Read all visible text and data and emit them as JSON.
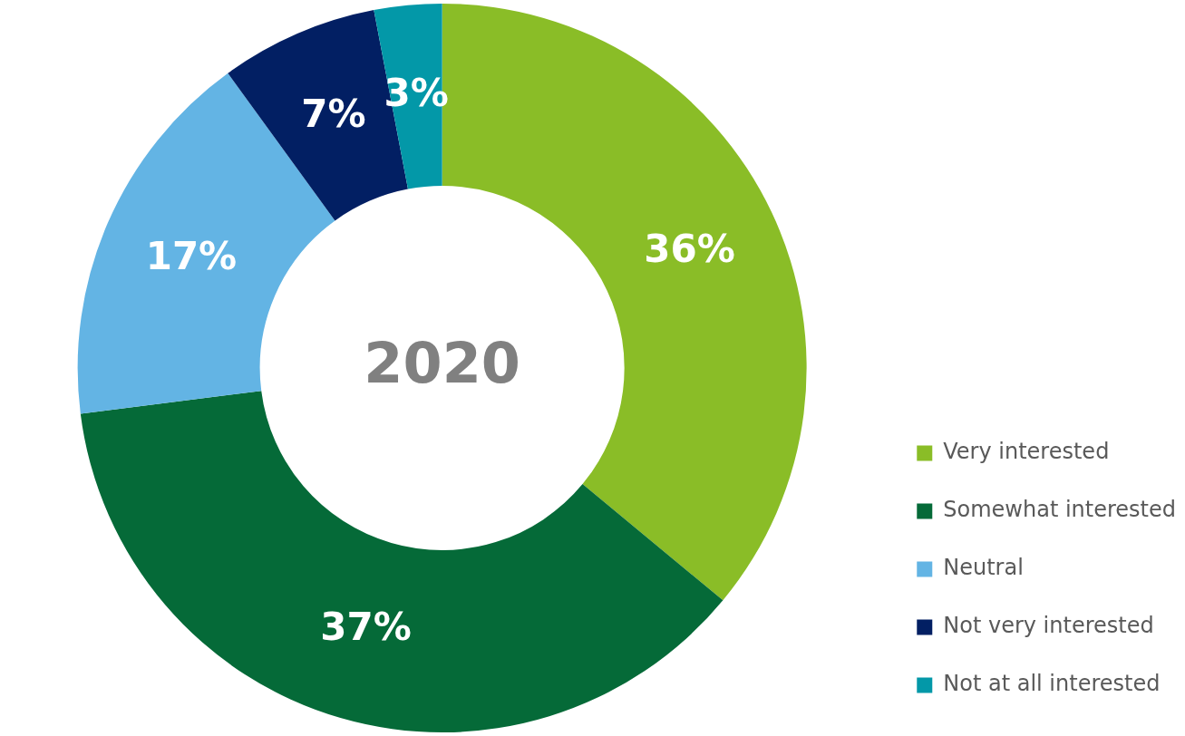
{
  "chart_data": {
    "type": "donut",
    "title": "2020",
    "categories": [
      "Very interested",
      "Somewhat interested",
      "Neutral",
      "Not very interested",
      "Not at all interested"
    ],
    "values": [
      36,
      37,
      17,
      7,
      3
    ],
    "value_labels": [
      "36%",
      "37%",
      "17%",
      "7%",
      "3%"
    ],
    "colors": [
      "#8abd27",
      "#056a38",
      "#63b4e4",
      "#021f63",
      "#0398a8"
    ],
    "legend": "bottom right"
  }
}
